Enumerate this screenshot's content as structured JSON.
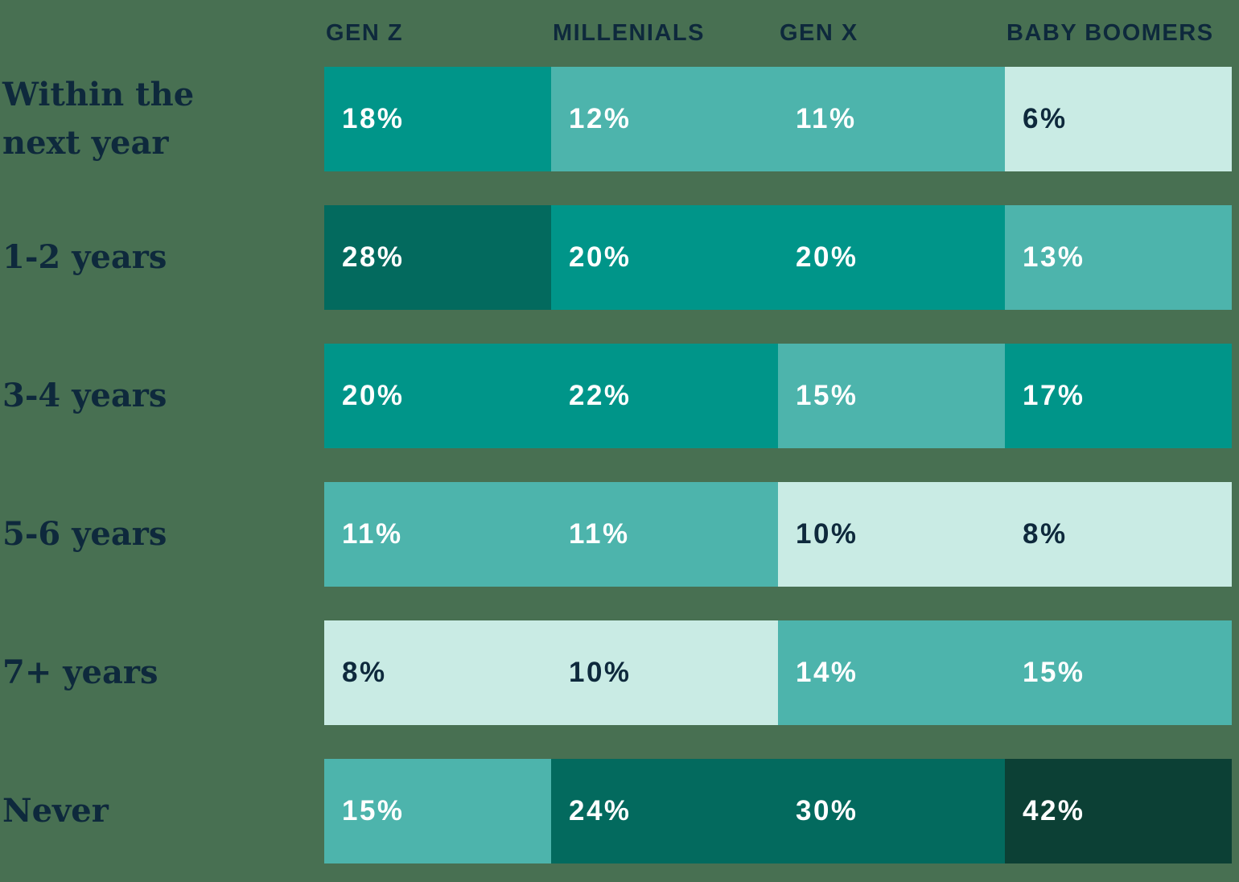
{
  "page": {
    "background_color": "#487052",
    "text_color": "#0E293C"
  },
  "chart_data": {
    "type": "heatmap",
    "title": "",
    "value_suffix": "%",
    "legend": "none",
    "grid": "off",
    "columns": [
      "GEN Z",
      "MILLENIALS",
      "GEN X",
      "BABY BOOMERS"
    ],
    "rows": [
      {
        "label": "Within the\nnext year",
        "values": [
          18,
          12,
          11,
          6
        ],
        "tones": [
          "strong",
          "medium",
          "medium",
          "lightest"
        ]
      },
      {
        "label": "1-2 years",
        "values": [
          28,
          20,
          20,
          13
        ],
        "tones": [
          "dark",
          "strong",
          "strong",
          "medium"
        ]
      },
      {
        "label": "3-4 years",
        "values": [
          20,
          22,
          15,
          17
        ],
        "tones": [
          "strong",
          "strong",
          "medium",
          "strong"
        ]
      },
      {
        "label": "5-6 years",
        "values": [
          11,
          11,
          10,
          8
        ],
        "tones": [
          "medium",
          "medium",
          "lightest",
          "lightest"
        ]
      },
      {
        "label": "7+ years",
        "values": [
          8,
          10,
          14,
          15
        ],
        "tones": [
          "lightest",
          "lightest",
          "medium",
          "medium"
        ]
      },
      {
        "label": "Never",
        "values": [
          15,
          24,
          30,
          42
        ],
        "tones": [
          "medium",
          "dark",
          "dark",
          "darkest"
        ]
      }
    ],
    "palette": {
      "lightest": {
        "bg": "#C9EBE4",
        "text": "#0E293C"
      },
      "medium": {
        "bg": "#4DB4AC",
        "text": "#FFFFFF"
      },
      "strong": {
        "bg": "#009589",
        "text": "#FFFFFF"
      },
      "dark": {
        "bg": "#036A5E",
        "text": "#FFFFFF"
      },
      "darkest": {
        "bg": "#0C4035",
        "text": "#FFFFFF"
      }
    }
  }
}
